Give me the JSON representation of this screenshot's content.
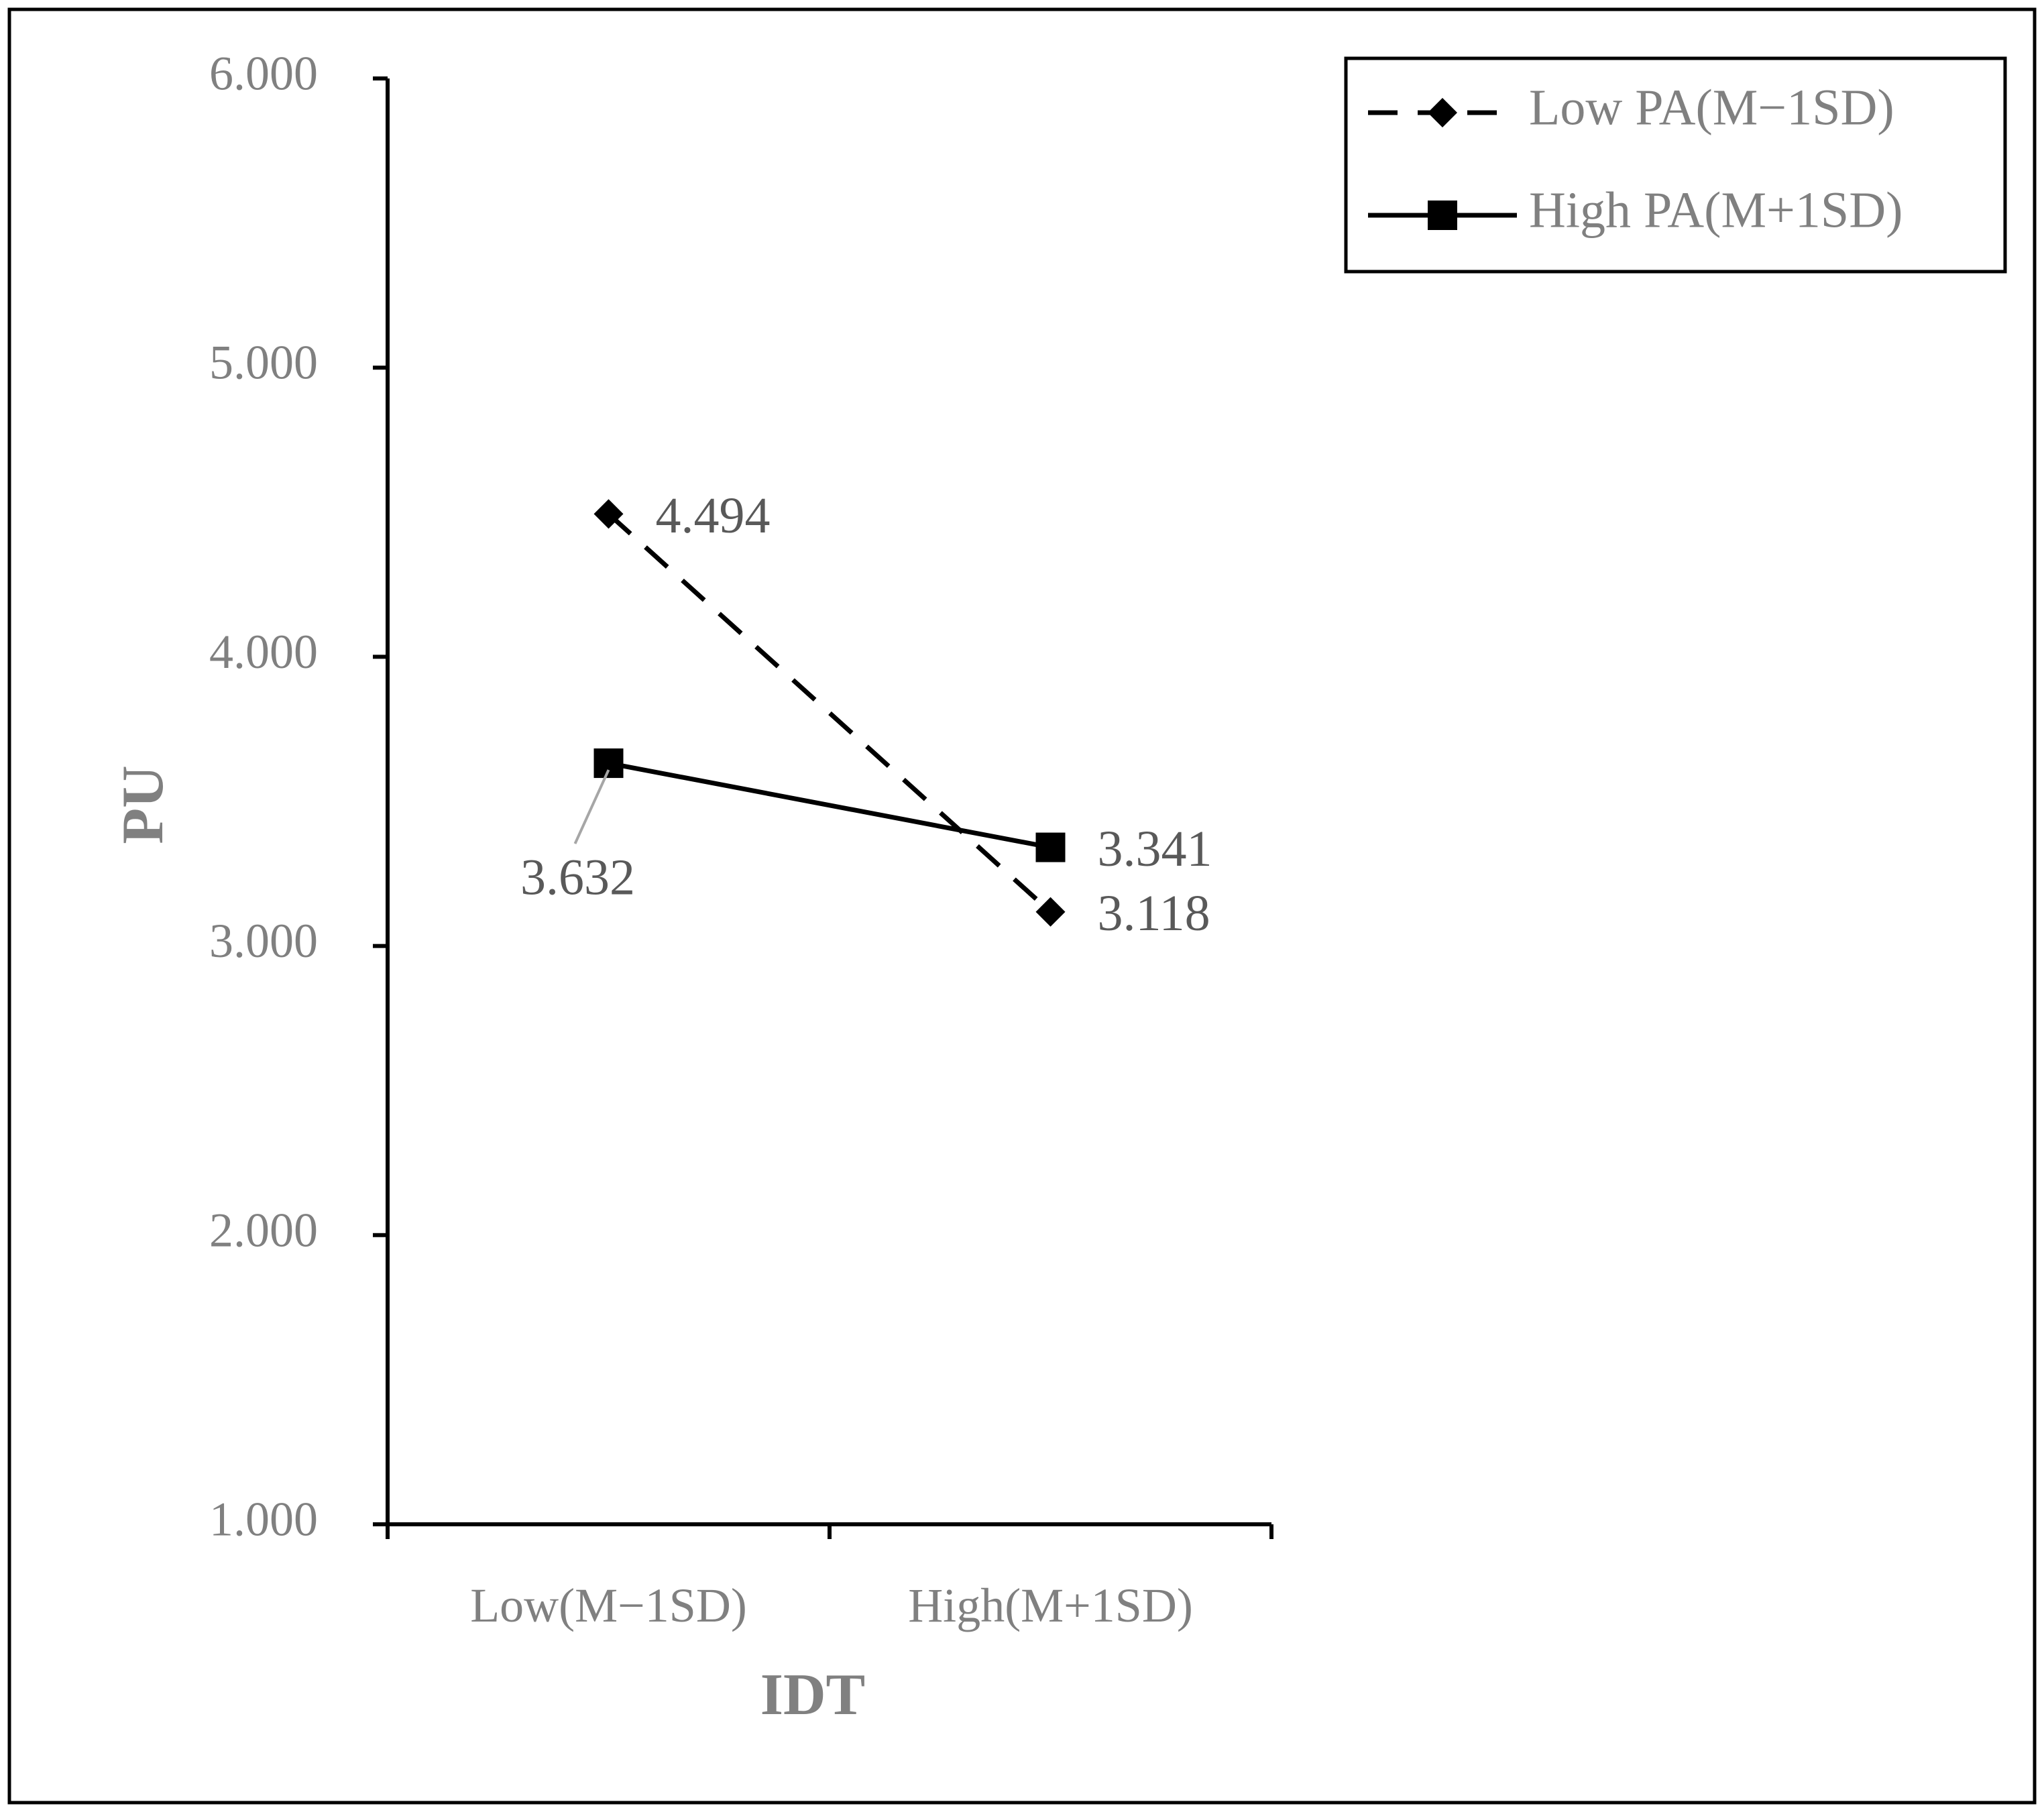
{
  "chart_data": {
    "type": "line",
    "title": "",
    "xlabel": "IDT",
    "ylabel": "PU",
    "categories": [
      "Low(M−1SD)",
      "High(M+1SD)"
    ],
    "ylim": [
      1,
      6
    ],
    "yticks": [
      "1.000",
      "2.000",
      "3.000",
      "4.000",
      "5.000",
      "6.000"
    ],
    "grid": false,
    "legend_position": "top-right",
    "series": [
      {
        "name": "Low PA(M−1SD)",
        "values": [
          4.494,
          3.118
        ],
        "labels": [
          "4.494",
          "3.118"
        ],
        "line_style": "dashed",
        "marker": "diamond",
        "color": "#000000"
      },
      {
        "name": "High PA(M+1SD)",
        "values": [
          3.632,
          3.341
        ],
        "labels": [
          "3.632",
          "3.341"
        ],
        "line_style": "solid",
        "marker": "square",
        "color": "#000000"
      }
    ]
  }
}
